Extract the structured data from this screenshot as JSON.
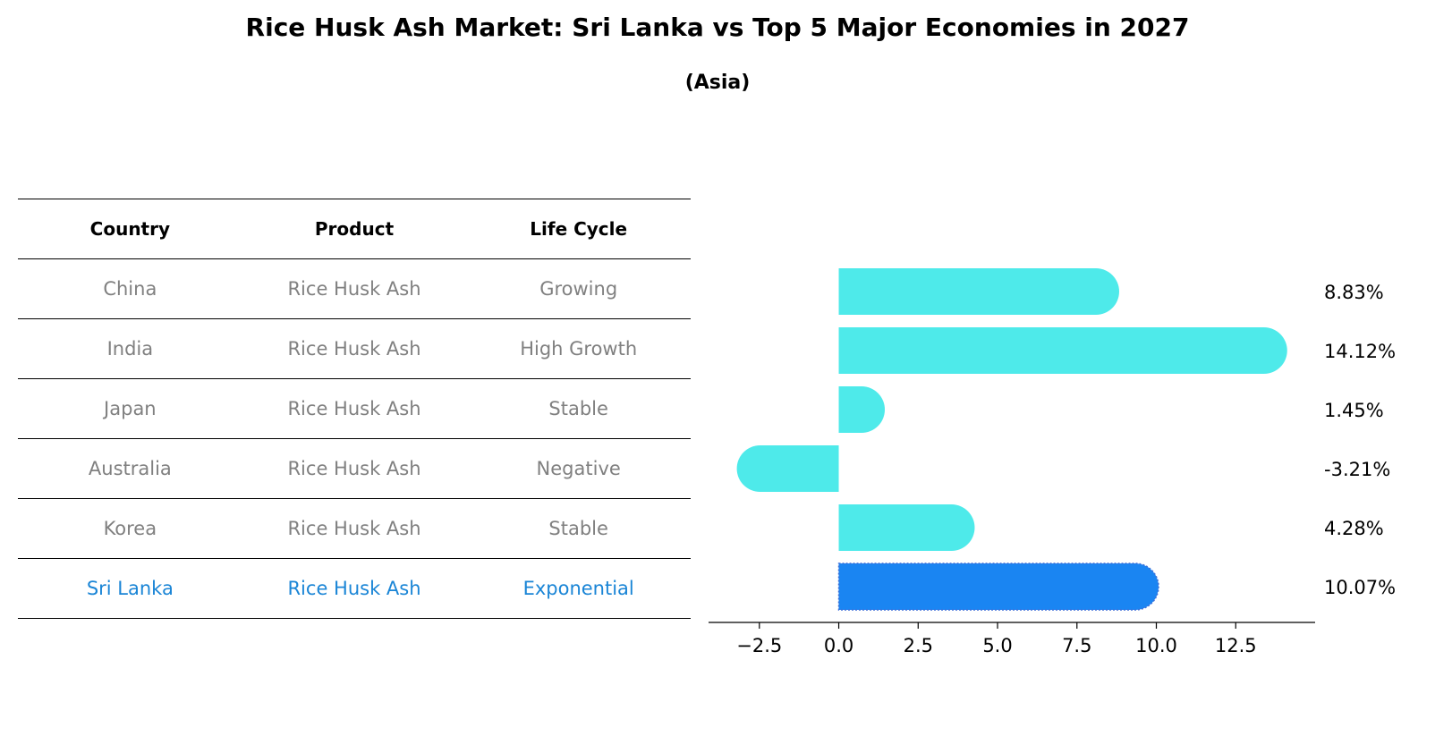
{
  "title": "Rice Husk Ash Market: Sri Lanka vs Top 5 Major Economies in 2027",
  "subtitle": "(Asia)",
  "table": {
    "headers": [
      "Country",
      "Product",
      "Life Cycle"
    ],
    "rows": [
      [
        "China",
        "Rice Husk Ash",
        "Growing"
      ],
      [
        "India",
        "Rice Husk Ash",
        "High Growth"
      ],
      [
        "Japan",
        "Rice Husk Ash",
        "Stable"
      ],
      [
        "Australia",
        "Rice Husk Ash",
        "Negative"
      ],
      [
        "Korea",
        "Rice Husk Ash",
        "Stable"
      ],
      [
        "Sri Lanka",
        "Rice Husk Ash",
        "Exponential"
      ]
    ],
    "highlight_row": 5
  },
  "chart_data": {
    "type": "bar",
    "orientation": "horizontal",
    "categories": [
      "China",
      "India",
      "Japan",
      "Australia",
      "Korea",
      "Sri Lanka"
    ],
    "values": [
      8.83,
      14.12,
      1.45,
      -3.21,
      4.28,
      10.07
    ],
    "labels": [
      "8.83%",
      "14.12%",
      "1.45%",
      "-3.21%",
      "4.28%",
      "10.07%"
    ],
    "xlim": [
      -4.1,
      15
    ],
    "xticks": [
      -2.5,
      0.0,
      2.5,
      5.0,
      7.5,
      10.0,
      12.5
    ],
    "xtick_labels": [
      "−2.5",
      "0.0",
      "2.5",
      "5.0",
      "7.5",
      "10.0",
      "12.5"
    ],
    "colors": {
      "default": "#4eeaea",
      "highlight": "#1a85f2"
    },
    "highlight_index": 5,
    "grid": false
  }
}
